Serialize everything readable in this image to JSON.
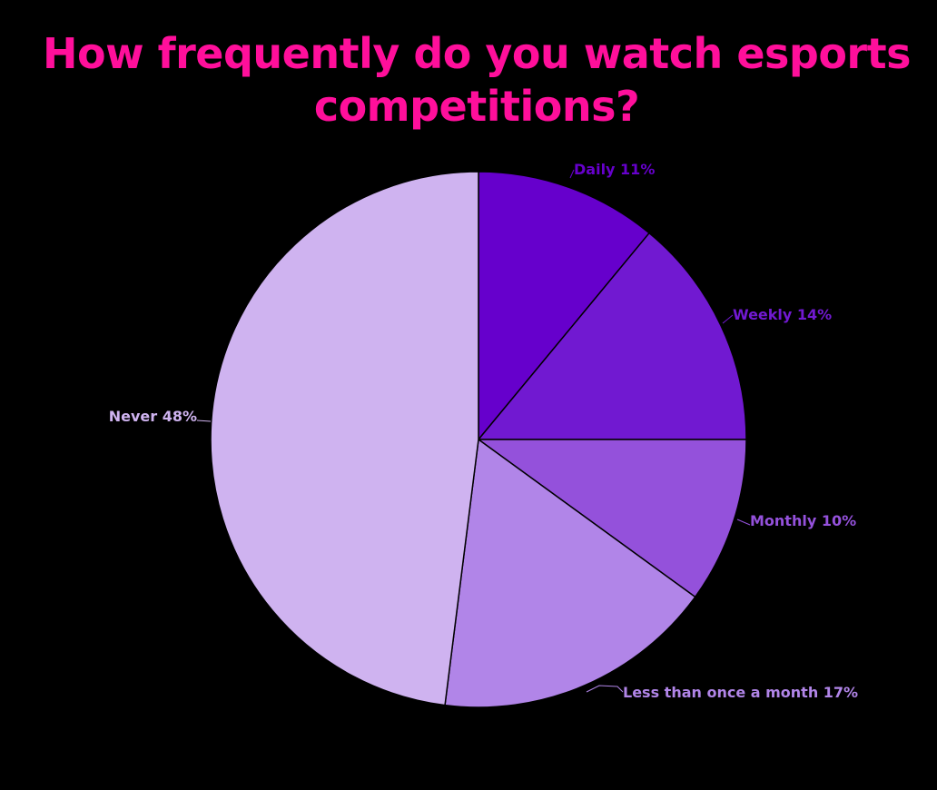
{
  "chart_data": {
    "type": "pie",
    "title": "How frequently do you watch esports competitions?",
    "start_angle_deg": 0,
    "direction": "clockwise",
    "slices": [
      {
        "label": "Daily",
        "value": 11,
        "display": "Daily 11%",
        "color": "#6600cc"
      },
      {
        "label": "Weekly",
        "value": 14,
        "display": "Weekly 14%",
        "color": "#7119d1"
      },
      {
        "label": "Monthly",
        "value": 10,
        "display": "Monthly 10%",
        "color": "#9451db"
      },
      {
        "label": "Less than once a month",
        "value": 17,
        "display": "Less than once a month 17%",
        "color": "#b185e8"
      },
      {
        "label": "Never",
        "value": 48,
        "display": "Never 48%",
        "color": "#cfb3f0"
      }
    ]
  }
}
